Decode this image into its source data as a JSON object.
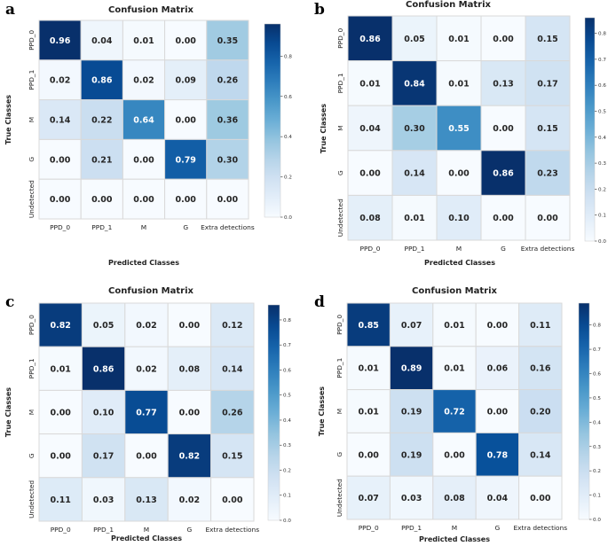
{
  "chart_data": [
    {
      "type": "heatmap",
      "panel_label": "a",
      "title": "Confusion Matrix",
      "xlabel": "Predicted Classes",
      "ylabel": "True Classes",
      "x_categories": [
        "PPD_0",
        "PPD_1",
        "M",
        "G",
        "Extra detections"
      ],
      "y_categories": [
        "PPD_0",
        "PPD_1",
        "M",
        "G",
        "Undetected"
      ],
      "values": [
        [
          0.96,
          0.04,
          0.01,
          0.0,
          0.35
        ],
        [
          0.02,
          0.86,
          0.02,
          0.09,
          0.26
        ],
        [
          0.14,
          0.22,
          0.64,
          0.0,
          0.36
        ],
        [
          0.0,
          0.21,
          0.0,
          0.79,
          0.3
        ],
        [
          0.0,
          0.0,
          0.0,
          0.0,
          0.0
        ]
      ],
      "colorbar": {
        "range": [
          0,
          0.96
        ],
        "ticks": [
          0.0,
          0.2,
          0.4,
          0.6,
          0.8
        ],
        "tick_labels": [
          "0.0",
          "0.2",
          "0.4",
          "0.6",
          "0.8"
        ]
      }
    },
    {
      "type": "heatmap",
      "panel_label": "b",
      "title": "Confusion Matrix",
      "xlabel": "Predicted Classes",
      "ylabel": "True Classes",
      "x_categories": [
        "PPD_0",
        "PPD_1",
        "M",
        "G",
        "Extra detections"
      ],
      "y_categories": [
        "PPD_0",
        "PPD_1",
        "M",
        "G",
        "Undetected"
      ],
      "values": [
        [
          0.86,
          0.05,
          0.01,
          0.0,
          0.15
        ],
        [
          0.01,
          0.84,
          0.01,
          0.13,
          0.17
        ],
        [
          0.04,
          0.3,
          0.55,
          0.0,
          0.15
        ],
        [
          0.0,
          0.14,
          0.0,
          0.86,
          0.23
        ],
        [
          0.08,
          0.01,
          0.1,
          0.0,
          0.0
        ]
      ],
      "colorbar": {
        "range": [
          0,
          0.86
        ],
        "ticks": [
          0.0,
          0.1,
          0.2,
          0.3,
          0.4,
          0.5,
          0.6,
          0.7,
          0.8
        ],
        "tick_labels": [
          "0.0",
          "0.1",
          "0.2",
          "0.3",
          "0.4",
          "0.5",
          "0.6",
          "0.7",
          "0.8"
        ]
      }
    },
    {
      "type": "heatmap",
      "panel_label": "c",
      "title": "Confusion Matrix",
      "xlabel": "Predicted Classes",
      "ylabel": "True Classes",
      "x_categories": [
        "PPD_0",
        "PPD_1",
        "M",
        "G",
        "Extra detections"
      ],
      "y_categories": [
        "PPD_0",
        "PPD_1",
        "M",
        "G",
        "Undetected"
      ],
      "values": [
        [
          0.82,
          0.05,
          0.02,
          0.0,
          0.12
        ],
        [
          0.01,
          0.86,
          0.02,
          0.08,
          0.14
        ],
        [
          0.0,
          0.1,
          0.77,
          0.0,
          0.26
        ],
        [
          0.0,
          0.17,
          0.0,
          0.82,
          0.15
        ],
        [
          0.11,
          0.03,
          0.13,
          0.02,
          0.0
        ]
      ],
      "colorbar": {
        "range": [
          0,
          0.86
        ],
        "ticks": [
          0.0,
          0.1,
          0.2,
          0.3,
          0.4,
          0.5,
          0.6,
          0.7,
          0.8
        ],
        "tick_labels": [
          "0.0",
          "0.1",
          "0.2",
          "0.3",
          "0.4",
          "0.5",
          "0.6",
          "0.7",
          "0.8"
        ]
      }
    },
    {
      "type": "heatmap",
      "panel_label": "d",
      "title": "Confusion Matrix",
      "xlabel": "Predicted Classes",
      "ylabel": "True Classes",
      "x_categories": [
        "PPD_0",
        "PPD_1",
        "M",
        "G",
        "Extra detections"
      ],
      "y_categories": [
        "PPD_0",
        "PPD_1",
        "M",
        "G",
        "Undetected"
      ],
      "values": [
        [
          0.85,
          0.07,
          0.01,
          0.0,
          0.11
        ],
        [
          0.01,
          0.89,
          0.01,
          0.06,
          0.16
        ],
        [
          0.01,
          0.19,
          0.72,
          0.0,
          0.2
        ],
        [
          0.0,
          0.19,
          0.0,
          0.78,
          0.14
        ],
        [
          0.07,
          0.03,
          0.08,
          0.04,
          0.0
        ]
      ],
      "colorbar": {
        "range": [
          0,
          0.89
        ],
        "ticks": [
          0.0,
          0.1,
          0.2,
          0.3,
          0.4,
          0.5,
          0.6,
          0.7,
          0.8
        ],
        "tick_labels": [
          "0.0",
          "0.1",
          "0.2",
          "0.3",
          "0.4",
          "0.5",
          "0.6",
          "0.7",
          "0.8"
        ]
      }
    }
  ]
}
